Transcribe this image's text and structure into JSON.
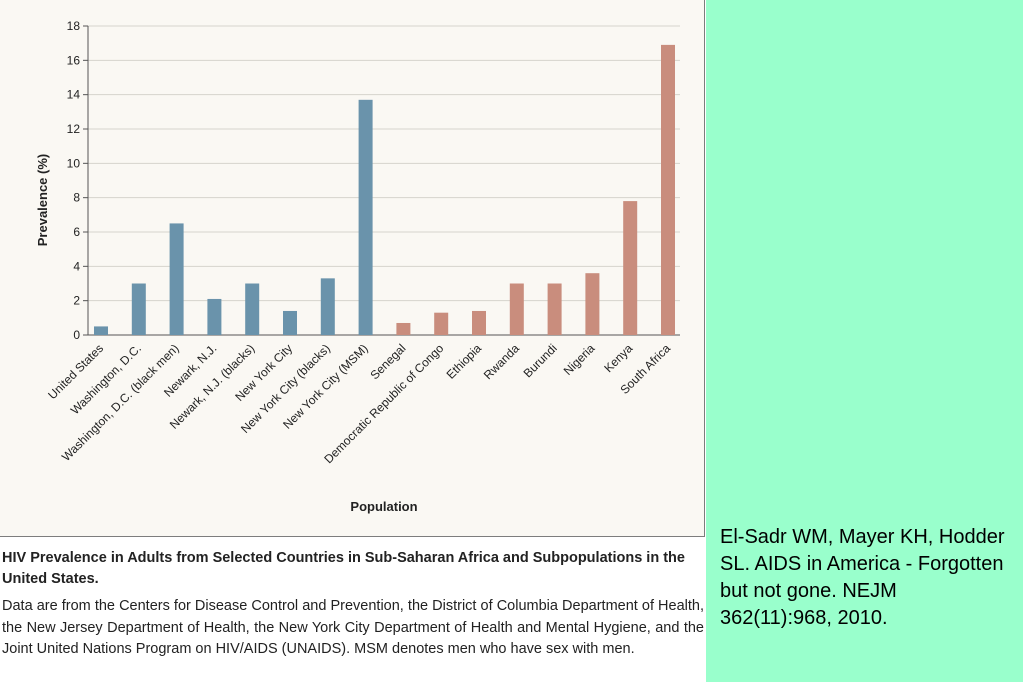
{
  "chart_data": {
    "type": "bar",
    "title": "",
    "xlabel": "Population",
    "ylabel": "Prevalence (%)",
    "ylim": [
      0,
      18
    ],
    "yticks": [
      0,
      2,
      4,
      6,
      8,
      10,
      12,
      14,
      16,
      18
    ],
    "grid": true,
    "categories": [
      "United States",
      "Washington, D.C.",
      "Washington, D.C. (black men)",
      "Newark, N.J.",
      "Newark, N.J. (blacks)",
      "New York City",
      "New York City (blacks)",
      "New York City (MSM)",
      "Senegal",
      "Democratic Republic of Congo",
      "Ethiopia",
      "Rwanda",
      "Burundi",
      "Nigeria",
      "Kenya",
      "South Africa"
    ],
    "values": [
      0.5,
      3.0,
      6.5,
      2.1,
      3.0,
      1.4,
      3.3,
      13.7,
      0.7,
      1.3,
      1.4,
      3.0,
      3.0,
      3.6,
      7.8,
      16.9
    ],
    "groups": [
      0,
      0,
      0,
      0,
      0,
      0,
      0,
      0,
      1,
      1,
      1,
      1,
      1,
      1,
      1,
      1
    ],
    "colors": {
      "us": "#6a93ab",
      "africa": "#c98d7d"
    }
  },
  "caption": {
    "title": "HIV Prevalence in Adults from Selected Countries in Sub-Saharan Africa and Subpopulations in the United States.",
    "body": "Data are from the Centers for Disease Control and Prevention, the District of Columbia Department of Health, the New Jersey Department of Health, the New York City Department of Health and Mental Hygiene, and the Joint United Nations Program on HIV/AIDS (UNAIDS). MSM denotes men who have sex with men."
  },
  "citation": "El-Sadr WM, Mayer KH, Hodder SL. AIDS in America - Forgotten but not gone. NEJM 362(11):968, 2010."
}
